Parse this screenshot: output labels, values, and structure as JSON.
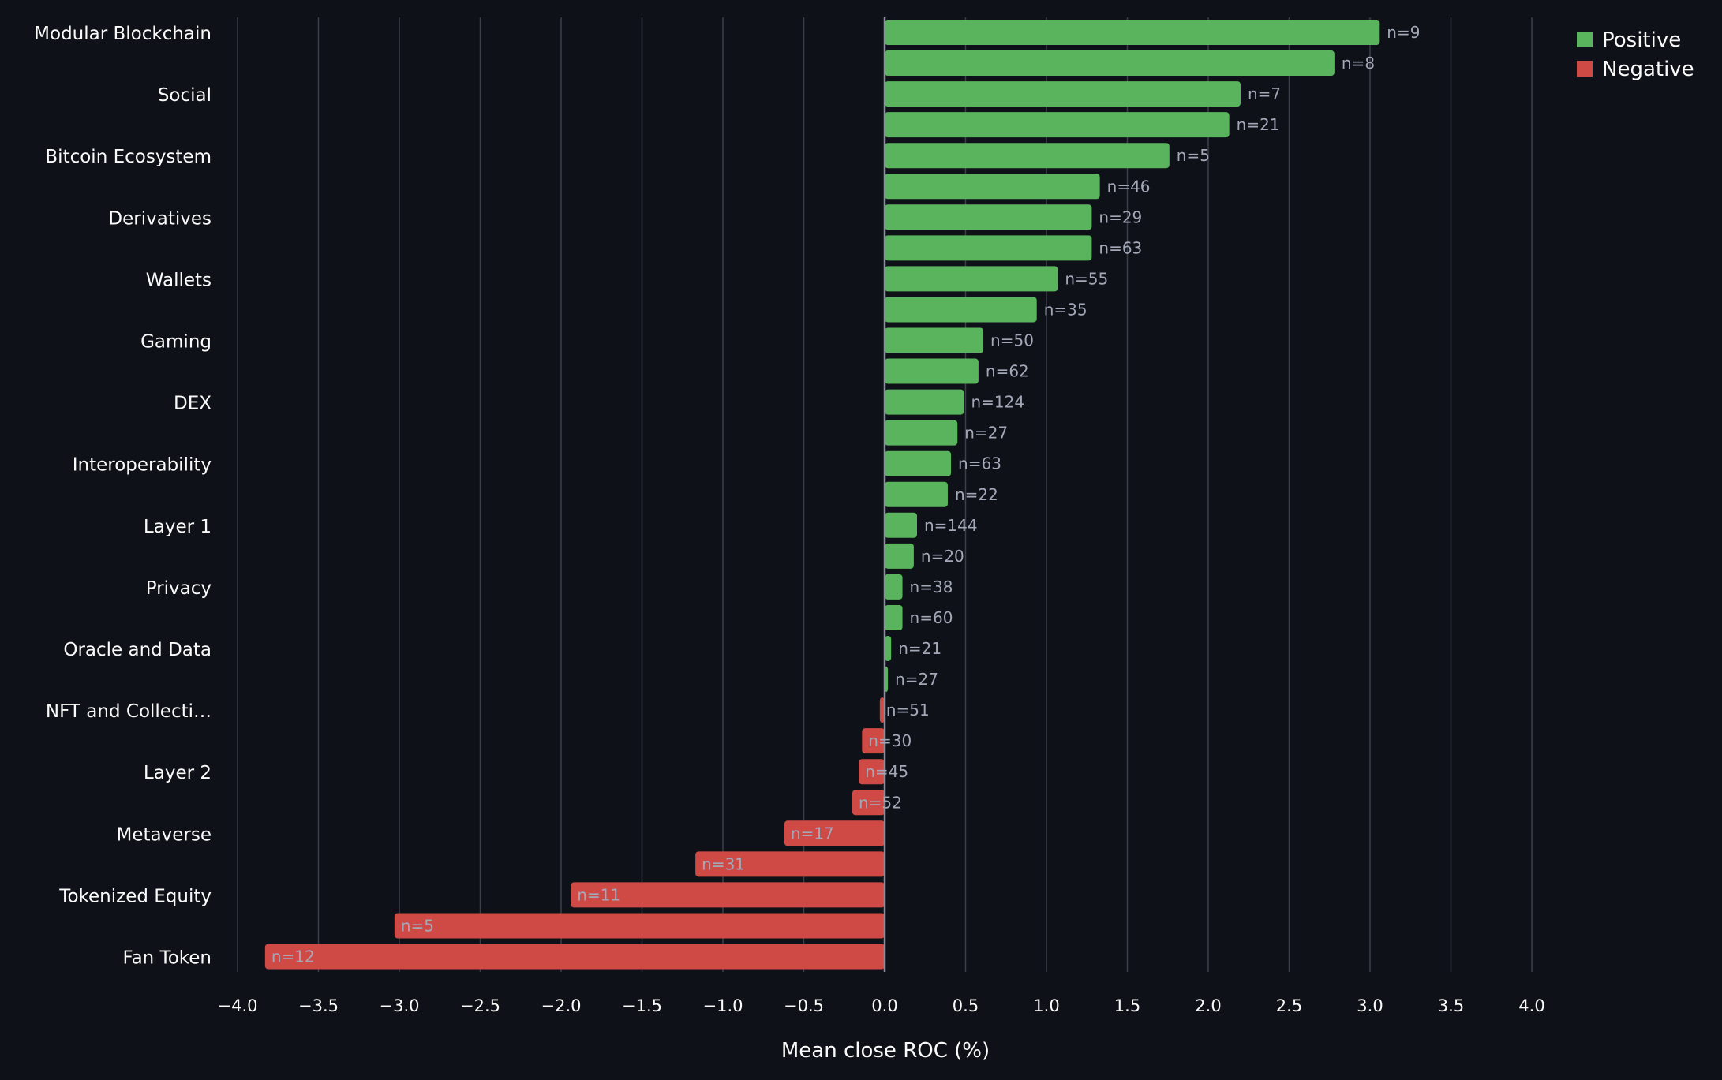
{
  "chart_data": {
    "type": "bar",
    "orientation": "horizontal",
    "xlabel": "Mean close ROC (%)",
    "ylabel": "",
    "xlim": [
      -4.0,
      4.0
    ],
    "x_ticks": [
      -4.0,
      -3.5,
      -3.0,
      -2.5,
      -2.0,
      -1.5,
      -1.0,
      -0.5,
      0.0,
      0.5,
      1.0,
      1.5,
      2.0,
      2.5,
      3.0,
      3.5,
      4.0
    ],
    "x_tick_labels": [
      "−4.0",
      "−3.5",
      "−3.0",
      "−2.5",
      "−2.0",
      "−1.5",
      "−1.0",
      "−0.5",
      "0.0",
      "0.5",
      "1.0",
      "1.5",
      "2.0",
      "2.5",
      "3.0",
      "3.5",
      "4.0"
    ],
    "grid": "vertical",
    "legend_position": "top-right",
    "legend": [
      {
        "label": "Positive",
        "color": "#5ab45e"
      },
      {
        "label": "Negative",
        "color": "#d04a45"
      }
    ],
    "colors": {
      "background": "#0e1117",
      "text": "#fafafa",
      "bar_label": "#a3a8b8",
      "grid": "#3b3f4a",
      "zero_line": "#8a8f9c"
    },
    "bars": [
      {
        "category": "Modular Blockchain",
        "value": 3.06,
        "n_label": "n=9",
        "show_category": true
      },
      {
        "category": "",
        "value": 2.78,
        "n_label": "n=8",
        "show_category": false
      },
      {
        "category": "Social",
        "value": 2.2,
        "n_label": "n=7",
        "show_category": true
      },
      {
        "category": "",
        "value": 2.13,
        "n_label": "n=21",
        "show_category": false
      },
      {
        "category": "Bitcoin Ecosystem",
        "value": 1.76,
        "n_label": "n=5",
        "show_category": true
      },
      {
        "category": "",
        "value": 1.33,
        "n_label": "n=46",
        "show_category": false
      },
      {
        "category": "Derivatives",
        "value": 1.28,
        "n_label": "n=29",
        "show_category": true
      },
      {
        "category": "",
        "value": 1.28,
        "n_label": "n=63",
        "show_category": false
      },
      {
        "category": "Wallets",
        "value": 1.07,
        "n_label": "n=55",
        "show_category": true
      },
      {
        "category": "",
        "value": 0.94,
        "n_label": "n=35",
        "show_category": false
      },
      {
        "category": "Gaming",
        "value": 0.61,
        "n_label": "n=50",
        "show_category": true
      },
      {
        "category": "",
        "value": 0.58,
        "n_label": "n=62",
        "show_category": false
      },
      {
        "category": "DEX",
        "value": 0.49,
        "n_label": "n=124",
        "show_category": true
      },
      {
        "category": "",
        "value": 0.45,
        "n_label": "n=27",
        "show_category": false
      },
      {
        "category": "Interoperability",
        "value": 0.41,
        "n_label": "n=63",
        "show_category": true
      },
      {
        "category": "",
        "value": 0.39,
        "n_label": "n=22",
        "show_category": false
      },
      {
        "category": "Layer 1",
        "value": 0.2,
        "n_label": "n=144",
        "show_category": true
      },
      {
        "category": "",
        "value": 0.18,
        "n_label": "n=20",
        "show_category": false
      },
      {
        "category": "Privacy",
        "value": 0.11,
        "n_label": "n=38",
        "show_category": true
      },
      {
        "category": "",
        "value": 0.11,
        "n_label": "n=60",
        "show_category": false
      },
      {
        "category": "Oracle and Data",
        "value": 0.04,
        "n_label": "n=21",
        "show_category": true
      },
      {
        "category": "",
        "value": 0.02,
        "n_label": "n=27",
        "show_category": false
      },
      {
        "category": "NFT and Collecti…",
        "value": -0.03,
        "n_label": "n=51",
        "show_category": true
      },
      {
        "category": "",
        "value": -0.14,
        "n_label": "n=30",
        "show_category": false
      },
      {
        "category": "Layer 2",
        "value": -0.16,
        "n_label": "n=45",
        "show_category": true
      },
      {
        "category": "",
        "value": -0.2,
        "n_label": "n=52",
        "show_category": false
      },
      {
        "category": "Metaverse",
        "value": -0.62,
        "n_label": "n=17",
        "show_category": true
      },
      {
        "category": "",
        "value": -1.17,
        "n_label": "n=31",
        "show_category": false
      },
      {
        "category": "Tokenized Equity",
        "value": -1.94,
        "n_label": "n=11",
        "show_category": true
      },
      {
        "category": "",
        "value": -3.03,
        "n_label": "n=5",
        "show_category": false
      },
      {
        "category": "Fan Token",
        "value": -3.83,
        "n_label": "n=12",
        "show_category": true
      }
    ]
  }
}
